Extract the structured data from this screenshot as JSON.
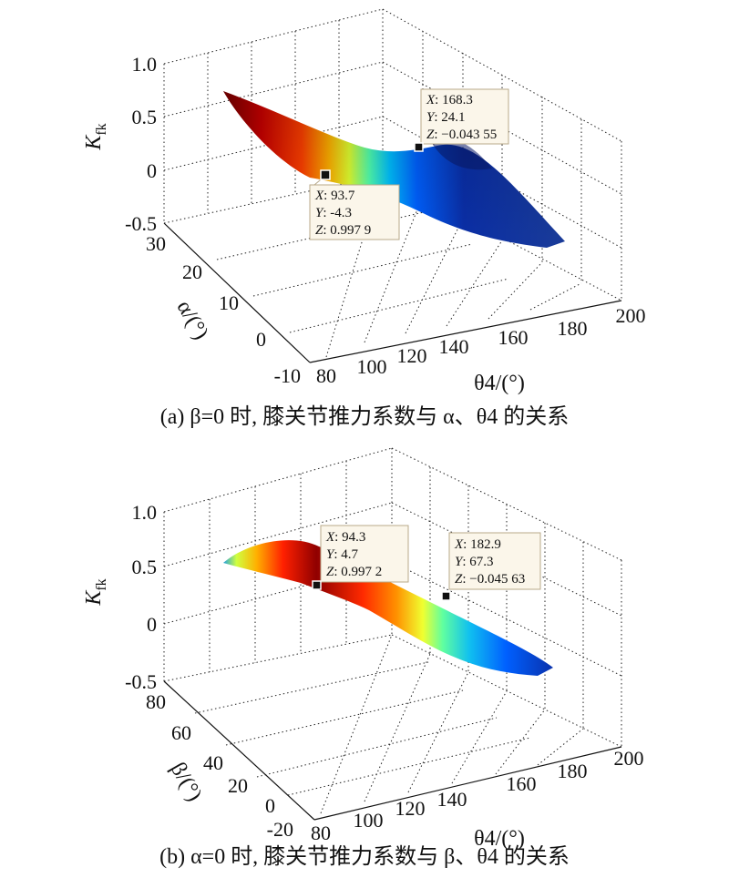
{
  "chart_data": [
    {
      "type": "surface",
      "panel": "a",
      "caption": "(a) β=0 时, 膝关节推力系数与 α、θ4 的关系",
      "zlabel": "K",
      "zlabel_sub": "fk",
      "ylabel": "α/(°)",
      "xlabel": "θ4/(°)",
      "x_ticks": [
        "80",
        "100",
        "120",
        "140",
        "160",
        "180",
        "200"
      ],
      "y_ticks": [
        "-10",
        "0",
        "10",
        "20",
        "30"
      ],
      "z_ticks": [
        "-0.5",
        "0",
        "0.5",
        "1.0"
      ],
      "xlim": [
        80,
        200
      ],
      "ylim": [
        -10,
        30
      ],
      "zlim": [
        -0.5,
        1.0
      ],
      "colormap": [
        "#00008f",
        "#0050ff",
        "#00c0ff",
        "#60ffa0",
        "#e0ff20",
        "#ffb000",
        "#ff3000",
        "#800000"
      ],
      "datatips": [
        {
          "x": "93.7",
          "y": "-4.3",
          "z": "0.997 9"
        },
        {
          "x": "168.3",
          "y": "24.1",
          "z": "−0.043 55"
        }
      ]
    },
    {
      "type": "surface",
      "panel": "b",
      "caption": "(b) α=0 时, 膝关节推力系数与 β、θ4 的关系",
      "zlabel": "K",
      "zlabel_sub": "fk",
      "ylabel": "β/(°)",
      "xlabel": "θ4/(°)",
      "x_ticks": [
        "80",
        "100",
        "120",
        "140",
        "160",
        "180",
        "200"
      ],
      "y_ticks": [
        "-20",
        "0",
        "20",
        "40",
        "60",
        "80"
      ],
      "z_ticks": [
        "-0.5",
        "0",
        "0.5",
        "1.0"
      ],
      "xlim": [
        80,
        200
      ],
      "ylim": [
        -20,
        80
      ],
      "zlim": [
        -0.5,
        1.0
      ],
      "colormap": [
        "#00008f",
        "#0050ff",
        "#00c0ff",
        "#60ffa0",
        "#e0ff20",
        "#ffb000",
        "#ff3000",
        "#800000"
      ],
      "datatips": [
        {
          "x": "94.3",
          "y": "4.7",
          "z": "0.997 2"
        },
        {
          "x": "182.9",
          "y": "67.3",
          "z": "−0.045 63"
        }
      ]
    }
  ]
}
